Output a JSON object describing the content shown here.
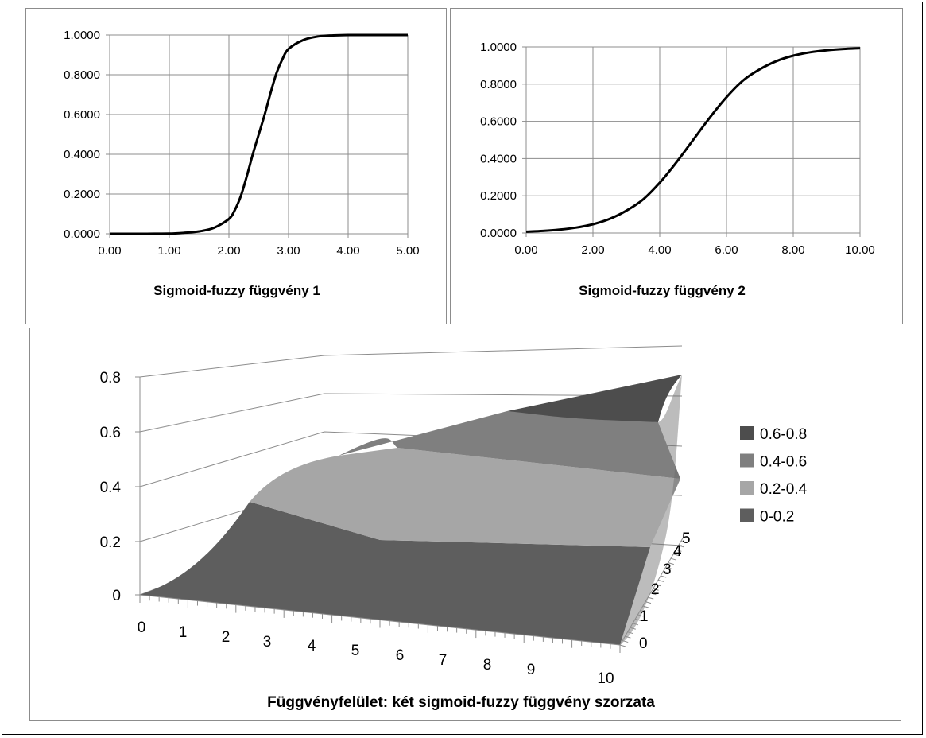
{
  "chart_data": [
    {
      "type": "line",
      "title": "Sigmoid-fuzzy függvény 1",
      "xlabel": "",
      "ylabel": "",
      "x_ticks": [
        "0.00",
        "1.00",
        "2.00",
        "3.00",
        "4.00",
        "5.00"
      ],
      "y_ticks": [
        "0.0000",
        "0.2000",
        "0.4000",
        "0.6000",
        "0.8000",
        "1.0000"
      ],
      "xlim": [
        0,
        5
      ],
      "ylim": [
        0,
        1
      ],
      "grid": true,
      "series": [
        {
          "color": "#000000",
          "x": [
            0.0,
            0.25,
            0.5,
            0.75,
            1.0,
            1.25,
            1.5,
            1.75,
            2.0,
            2.1,
            2.2,
            2.3,
            2.4,
            2.5,
            2.6,
            2.7,
            2.8,
            2.9,
            3.0,
            3.25,
            3.5,
            3.75,
            4.0,
            4.5,
            5.0
          ],
          "y": [
            0.0,
            0.0,
            0.0,
            0.0005,
            0.001,
            0.005,
            0.012,
            0.03,
            0.075,
            0.12,
            0.19,
            0.29,
            0.4,
            0.5,
            0.6,
            0.71,
            0.81,
            0.88,
            0.93,
            0.975,
            0.993,
            0.998,
            1.0,
            1.0,
            1.0
          ]
        }
      ]
    },
    {
      "type": "line",
      "title": "Sigmoid-fuzzy függvény 2",
      "xlabel": "",
      "ylabel": "",
      "x_ticks": [
        "0.00",
        "2.00",
        "4.00",
        "6.00",
        "8.00",
        "10.00"
      ],
      "y_ticks": [
        "0.0000",
        "0.2000",
        "0.4000",
        "0.6000",
        "0.8000",
        "1.0000"
      ],
      "xlim": [
        0,
        10
      ],
      "ylim": [
        0,
        1
      ],
      "grid": true,
      "series": [
        {
          "color": "#000000",
          "x": [
            0,
            0.5,
            1,
            1.5,
            2,
            2.5,
            3,
            3.5,
            4,
            4.5,
            5,
            5.5,
            6,
            6.5,
            7,
            7.5,
            8,
            8.5,
            9,
            9.5,
            10
          ],
          "y": [
            0.007,
            0.011,
            0.018,
            0.029,
            0.047,
            0.076,
            0.12,
            0.18,
            0.27,
            0.38,
            0.5,
            0.62,
            0.73,
            0.82,
            0.88,
            0.924,
            0.953,
            0.971,
            0.982,
            0.989,
            0.993
          ]
        }
      ]
    },
    {
      "type": "surface",
      "title": "Függvényfelület: két sigmoid-fuzzy függvény szorzata",
      "z_ticks": [
        "0",
        "0.2",
        "0.4",
        "0.6",
        "0.8"
      ],
      "x_ticks": [
        "0",
        "1",
        "2",
        "3",
        "4",
        "5",
        "6",
        "7",
        "8",
        "9",
        "10"
      ],
      "y_ticks": [
        "0",
        "1",
        "2",
        "3",
        "4",
        "5"
      ],
      "zlim": [
        0,
        0.8
      ],
      "legend_position": "right",
      "legend": [
        {
          "label": "0.6-0.8",
          "color": "#4d4d4d"
        },
        {
          "label": "0.4-0.6",
          "color": "#7f7f7f"
        },
        {
          "label": "0.2-0.4",
          "color": "#a6a6a6"
        },
        {
          "label": "0-0.2",
          "color": "#5e5e5e"
        }
      ]
    }
  ]
}
